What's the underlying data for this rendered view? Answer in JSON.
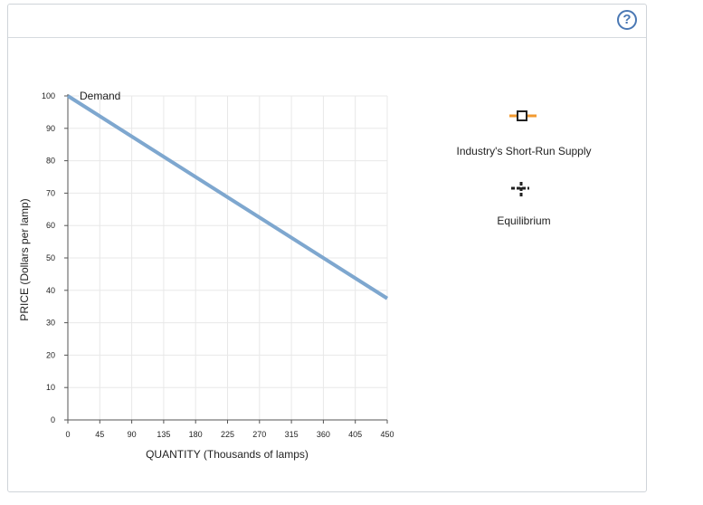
{
  "help": {
    "label": "?"
  },
  "chart_data": {
    "type": "line",
    "xlabel": "QUANTITY (Thousands of lamps)",
    "ylabel": "PRICE (Dollars per lamp)",
    "xlim": [
      0,
      450
    ],
    "ylim": [
      0,
      100
    ],
    "xticks": [
      0,
      45,
      90,
      135,
      180,
      225,
      270,
      315,
      360,
      405,
      450
    ],
    "yticks": [
      0,
      10,
      20,
      30,
      40,
      50,
      60,
      70,
      80,
      90,
      100
    ],
    "grid": true,
    "series": [
      {
        "name": "Demand",
        "color": "#7ea7cf",
        "points": [
          [
            0,
            100
          ],
          [
            450,
            37.5
          ]
        ]
      }
    ]
  },
  "tools": [
    {
      "label": "Industry's Short-Run Supply",
      "icon": "supply-marker-icon",
      "color": "#f29a30"
    },
    {
      "label": "Equilibrium",
      "icon": "equilibrium-marker-icon",
      "color": "#222222"
    }
  ]
}
